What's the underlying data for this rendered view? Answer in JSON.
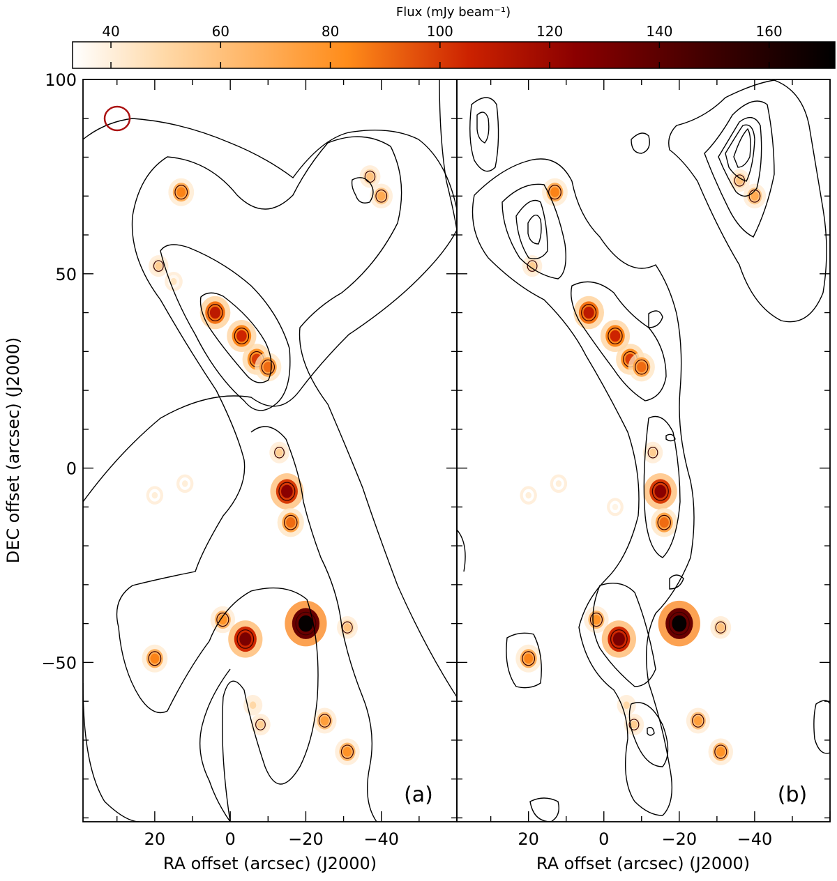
{
  "colorbar": {
    "label": "Flux (mJy beam⁻¹)",
    "range": [
      33,
      172
    ],
    "ticks": [
      40,
      60,
      80,
      100,
      120,
      140,
      160
    ],
    "colors": [
      "#ffffff",
      "#ffd9a8",
      "#ff8c1a",
      "#cc2200",
      "#8b0000",
      "#3d0000",
      "#000000"
    ]
  },
  "chart_data": [
    {
      "type": "heatmap",
      "panel_label": "(a)",
      "xlabel": "RA offset (arcsec) (J2000)",
      "ylabel": "DEC offset (arcsec) (J2000)",
      "xlim": [
        39,
        -60
      ],
      "ylim": [
        -91,
        100
      ],
      "xticks": [
        20,
        0,
        -20,
        -40
      ],
      "yticks": [
        100,
        50,
        0,
        -50
      ],
      "beam": {
        "x": 30,
        "y": 90,
        "rx": 3.3,
        "ry": 3
      },
      "sources": [
        {
          "x": 13,
          "y": 71,
          "peak": 85
        },
        {
          "x": -37,
          "y": 75,
          "peak": 60
        },
        {
          "x": -40,
          "y": 70,
          "peak": 70
        },
        {
          "x": 19,
          "y": 52,
          "peak": 55
        },
        {
          "x": 15,
          "y": 48,
          "peak": 45
        },
        {
          "x": 4,
          "y": 40,
          "peak": 110
        },
        {
          "x": -3,
          "y": 34,
          "peak": 105
        },
        {
          "x": -7,
          "y": 28,
          "peak": 100
        },
        {
          "x": -10,
          "y": 26,
          "peak": 90
        },
        {
          "x": -13,
          "y": 4,
          "peak": 55
        },
        {
          "x": -15,
          "y": -6,
          "peak": 125
        },
        {
          "x": -16,
          "y": -14,
          "peak": 90
        },
        {
          "x": 2,
          "y": -39,
          "peak": 80
        },
        {
          "x": -4,
          "y": -44,
          "peak": 130
        },
        {
          "x": -20,
          "y": -40,
          "peak": 170
        },
        {
          "x": -31,
          "y": -41,
          "peak": 60
        },
        {
          "x": 20,
          "y": -49,
          "peak": 85
        },
        {
          "x": -6,
          "y": -61,
          "peak": 50
        },
        {
          "x": -8,
          "y": -66,
          "peak": 55
        },
        {
          "x": -25,
          "y": -65,
          "peak": 75
        },
        {
          "x": -31,
          "y": -73,
          "peak": 80
        },
        {
          "x": 20,
          "y": -7,
          "peak": 40
        },
        {
          "x": 12,
          "y": -4,
          "peak": 40
        }
      ]
    },
    {
      "type": "heatmap",
      "panel_label": "(b)",
      "xlabel": "RA offset (arcsec) (J2000)",
      "ylabel": "",
      "xlim": [
        39,
        -60
      ],
      "ylim": [
        -91,
        100
      ],
      "xticks": [
        20,
        0,
        -20,
        -40
      ],
      "yticks": [
        100,
        50,
        0,
        -50
      ],
      "sources": [
        {
          "x": 13,
          "y": 71,
          "peak": 85
        },
        {
          "x": -36,
          "y": 74,
          "peak": 60
        },
        {
          "x": -40,
          "y": 70,
          "peak": 70
        },
        {
          "x": 19,
          "y": 52,
          "peak": 55
        },
        {
          "x": 4,
          "y": 40,
          "peak": 110
        },
        {
          "x": -3,
          "y": 34,
          "peak": 105
        },
        {
          "x": -7,
          "y": 28,
          "peak": 100
        },
        {
          "x": -10,
          "y": 26,
          "peak": 90
        },
        {
          "x": -13,
          "y": 4,
          "peak": 55
        },
        {
          "x": -15,
          "y": -6,
          "peak": 125
        },
        {
          "x": -16,
          "y": -14,
          "peak": 90
        },
        {
          "x": 2,
          "y": -39,
          "peak": 80
        },
        {
          "x": -4,
          "y": -44,
          "peak": 130
        },
        {
          "x": -20,
          "y": -40,
          "peak": 170
        },
        {
          "x": -31,
          "y": -41,
          "peak": 60
        },
        {
          "x": 20,
          "y": -49,
          "peak": 85
        },
        {
          "x": -6,
          "y": -61,
          "peak": 50
        },
        {
          "x": -8,
          "y": -66,
          "peak": 55
        },
        {
          "x": -25,
          "y": -65,
          "peak": 75
        },
        {
          "x": -31,
          "y": -73,
          "peak": 80
        },
        {
          "x": 20,
          "y": -7,
          "peak": 40
        },
        {
          "x": 12,
          "y": -4,
          "peak": 40
        },
        {
          "x": -3,
          "y": -10,
          "peak": 38
        }
      ]
    }
  ]
}
